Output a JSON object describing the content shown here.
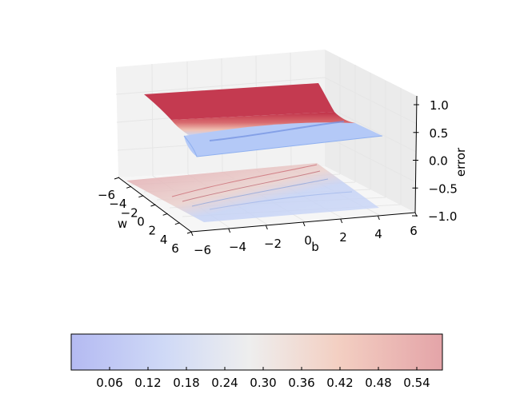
{
  "chart_data": {
    "type": "surface3d",
    "title": "",
    "axes": {
      "w": {
        "label": "w",
        "ticks": [
          "−6",
          "−4",
          "−2",
          "0",
          "2",
          "4",
          "6"
        ],
        "range": [
          -6,
          6
        ]
      },
      "b": {
        "label": "b",
        "ticks": [
          "−6",
          "−4",
          "−2",
          "0",
          "2",
          "4",
          "6"
        ],
        "range": [
          -6,
          6
        ]
      },
      "error": {
        "label": "error",
        "ticks": [
          "1.0",
          "0.5",
          "0.0",
          "−0.5",
          "−1.0"
        ],
        "range": [
          -1,
          1
        ]
      }
    },
    "surface": {
      "description_levels": {
        "high_plateau": 1.0,
        "low_plateau": 0.0
      },
      "colormap": "coolwarm"
    },
    "contour_projection": {
      "z": -1.0
    },
    "colorbar": {
      "range": [
        0.0,
        0.58
      ],
      "ticks": [
        "0.06",
        "0.12",
        "0.18",
        "0.24",
        "0.30",
        "0.36",
        "0.42",
        "0.48",
        "0.54"
      ],
      "tick_values": [
        0.06,
        0.12,
        0.18,
        0.24,
        0.3,
        0.36,
        0.42,
        0.48,
        0.54
      ]
    }
  }
}
